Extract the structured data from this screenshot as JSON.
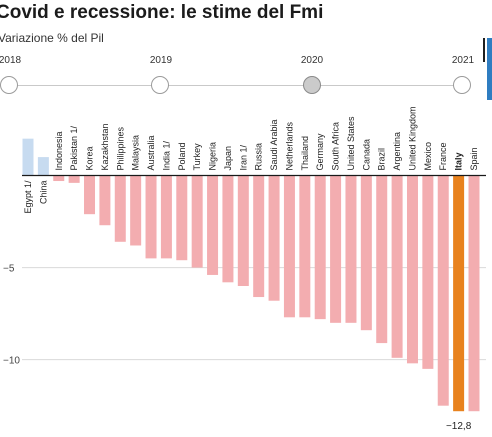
{
  "chart_data": {
    "type": "bar",
    "title": "Covid e recessione: le stime del Fmi",
    "ylabel": "Variazione % del Pil",
    "categories": [
      "Egypt 1/",
      "China",
      "Indonesia",
      "Pakistan 1/",
      "Korea",
      "Kazakhstan",
      "Philippines",
      "Malaysia",
      "Australia",
      "India 1/",
      "Poland",
      "Turkey",
      "Nigeria",
      "Japan",
      "Iran 1/",
      "Russia",
      "Saudi Arabia",
      "Netherlands",
      "Thailand",
      "Germany",
      "South Africa",
      "United States",
      "Canada",
      "Brazil",
      "Argentina",
      "United Kingdom",
      "Mexico",
      "France",
      "Italy",
      "Spain"
    ],
    "values": [
      2.0,
      1.0,
      -0.3,
      -0.4,
      -2.1,
      -2.7,
      -3.6,
      -3.8,
      -4.5,
      -4.5,
      -4.6,
      -5.0,
      -5.4,
      -5.8,
      -6.0,
      -6.6,
      -6.8,
      -7.7,
      -7.7,
      -7.8,
      -8.0,
      -8.0,
      -8.4,
      -9.1,
      -9.9,
      -10.2,
      -10.5,
      -12.5,
      -12.8,
      -12.8
    ],
    "highlight": "Italy",
    "annotations": [
      {
        "category": "Italy",
        "text": "−12,8"
      }
    ],
    "yticks": [
      -5,
      -10
    ],
    "ytick_labels": [
      "−5",
      "−10"
    ],
    "ylim": [
      -14.2,
      4.1
    ],
    "grid": true
  },
  "timeline": {
    "years": [
      "2018",
      "2019",
      "2020",
      "2021"
    ],
    "selected_index": 2
  },
  "colors": {
    "positive_bar": "#c7dbf0",
    "negative_bar": "#f3adb0",
    "highlight_bar": "#e8821e",
    "grid": "#d9d9d9",
    "zero_line": "#1a1a1a",
    "tick_text": "#444444",
    "label_text": "#222222"
  }
}
